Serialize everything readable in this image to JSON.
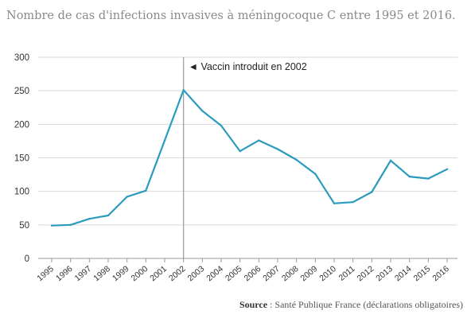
{
  "chart_data": {
    "type": "line",
    "title": "Nombre de cas d'infections invasives à méningocoque C entre 1995 et 2016.",
    "xlabel": "",
    "ylabel": "",
    "x": [
      "1995",
      "1996",
      "1997",
      "1998",
      "1999",
      "2000",
      "2001",
      "2002",
      "2003",
      "2004",
      "2005",
      "2006",
      "2007",
      "2008",
      "2009",
      "2010",
      "2011",
      "2012",
      "2013",
      "2014",
      "2015",
      "2016"
    ],
    "series": [
      {
        "values": [
          49,
          50,
          59,
          64,
          92,
          101,
          176,
          251,
          220,
          198,
          160,
          176,
          163,
          147,
          126,
          82,
          84,
          99,
          146,
          122,
          119,
          133
        ]
      }
    ],
    "ylim": [
      0,
      300
    ],
    "yticks": [
      0,
      50,
      100,
      150,
      200,
      250,
      300
    ],
    "grid": true,
    "annotation": {
      "x": "2002",
      "text": "◄ Vaccin introduit en 2002"
    },
    "colors": {
      "line": "#2a9bbf",
      "grid": "#d9d9d9",
      "annotation_line": "#9a9a9a"
    }
  },
  "source": {
    "label": "Source",
    "separator": " : ",
    "text": "Santé Publique France (déclarations obligatoires)"
  }
}
